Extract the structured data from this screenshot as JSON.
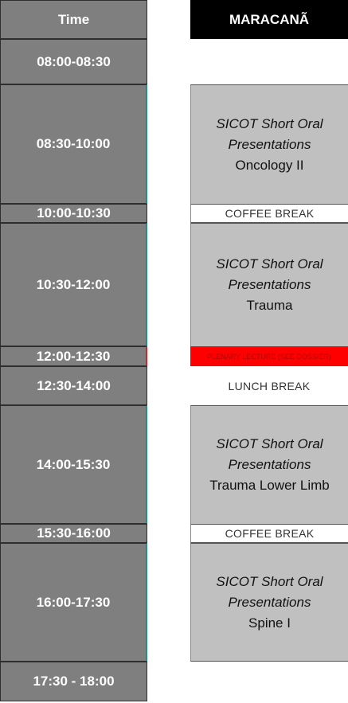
{
  "header": {
    "time_label": "Time",
    "venue": "MARACANÃ"
  },
  "times": [
    "08:00-08:30",
    "08:30-10:00",
    "10:00-10:30",
    "10:30-12:00",
    "12:00-12:30",
    "12:30-14:00",
    "14:00-15:30",
    "15:30-16:00",
    "16:00-17:30",
    "17:30 - 18:00"
  ],
  "sessions": [
    {
      "line1": "SICOT Short Oral",
      "line2": "Presentations",
      "topic": "Oncology II"
    },
    {
      "line1": "SICOT Short Oral",
      "line2": "Presentations",
      "topic": "Trauma"
    },
    {
      "line1": "SICOT Short Oral",
      "line2": "Presentations",
      "topic": "Trauma Lower Limb"
    },
    {
      "line1": "SICOT Short Oral",
      "line2": "Presentations",
      "topic": "Spine I"
    }
  ],
  "breaks": {
    "coffee1": "COFFEE BREAK",
    "lunch": "LUNCH BREAK",
    "coffee2": "COFFEE BREAK"
  },
  "special": {
    "red_text": "PLENARY LECTURE (SEE DOSSIER)"
  },
  "colors": {
    "time_bg": "#7f7f7f",
    "session_bg": "#c0c0c0",
    "header_bg": "#000000",
    "highlight": "#ff0000"
  }
}
